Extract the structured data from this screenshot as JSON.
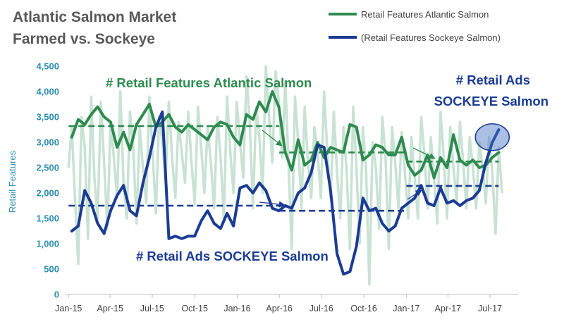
{
  "title": "Atlantic Salmon Market",
  "subtitle": "Farmed vs. Sockeye",
  "chart_data": {
    "type": "line",
    "ylabel": "Retail Features",
    "ylim": [
      0,
      4500
    ],
    "yticks": [
      0,
      500,
      1000,
      1500,
      2000,
      2500,
      3000,
      3500,
      4000,
      4500
    ],
    "ytick_labels": [
      "0",
      "500",
      "1,000",
      "1,500",
      "2,000",
      "2,500",
      "3,000",
      "3,500",
      "4,000",
      "4,500"
    ],
    "xlim": [
      "2014-12-24",
      "2017-08-31"
    ],
    "xtick_dates": [
      "2015-01-01",
      "2015-04-01",
      "2015-07-01",
      "2015-10-01",
      "2016-01-01",
      "2016-04-01",
      "2016-07-01",
      "2016-10-01",
      "2017-01-01",
      "2017-04-01",
      "2017-07-01"
    ],
    "xtick_labels": [
      "Jan-15",
      "Apr-15",
      "Jul-15",
      "Oct-15",
      "Jan-16",
      "Apr-16",
      "Jul-16",
      "Oct-16",
      "Jan-17",
      "Apr-17",
      "Jul-17"
    ],
    "legend_position": "top-right",
    "grid": false,
    "series": [
      {
        "name": "Retail Features Atlantic Salmon",
        "color": "#2e8b4f",
        "x": [
          "2015-01-08",
          "2015-01-22",
          "2015-02-05",
          "2015-02-19",
          "2015-03-05",
          "2015-03-19",
          "2015-04-02",
          "2015-04-16",
          "2015-04-30",
          "2015-05-14",
          "2015-05-28",
          "2015-06-11",
          "2015-06-25",
          "2015-07-09",
          "2015-07-23",
          "2015-08-06",
          "2015-08-20",
          "2015-09-03",
          "2015-09-17",
          "2015-10-01",
          "2015-10-15",
          "2015-10-29",
          "2015-11-12",
          "2015-11-26",
          "2015-12-10",
          "2015-12-24",
          "2016-01-07",
          "2016-01-21",
          "2016-02-04",
          "2016-02-18",
          "2016-03-03",
          "2016-03-17",
          "2016-03-31",
          "2016-04-14",
          "2016-04-28",
          "2016-05-12",
          "2016-05-26",
          "2016-06-09",
          "2016-06-23",
          "2016-07-07",
          "2016-07-21",
          "2016-08-04",
          "2016-08-18",
          "2016-09-01",
          "2016-09-15",
          "2016-09-29",
          "2016-10-13",
          "2016-10-27",
          "2016-11-10",
          "2016-11-24",
          "2016-12-08",
          "2016-12-22",
          "2017-01-05",
          "2017-01-19",
          "2017-02-02",
          "2017-02-16",
          "2017-03-02",
          "2017-03-16",
          "2017-03-30",
          "2017-04-13",
          "2017-04-27",
          "2017-05-11",
          "2017-05-25",
          "2017-06-08",
          "2017-06-22",
          "2017-07-06",
          "2017-07-20"
        ],
        "y": [
          3100,
          3450,
          3350,
          3550,
          3700,
          3500,
          3400,
          2900,
          3200,
          2850,
          3350,
          3550,
          3750,
          3300,
          3400,
          3550,
          3300,
          3200,
          3350,
          3250,
          3150,
          3050,
          3300,
          3400,
          3350,
          3100,
          2950,
          3550,
          3450,
          3800,
          3600,
          4000,
          3700,
          2800,
          2450,
          3050,
          2550,
          2650,
          3000,
          2700,
          2900,
          2850,
          2800,
          3350,
          3300,
          2650,
          2750,
          2950,
          2900,
          2750,
          2750,
          3100,
          2550,
          2350,
          2450,
          2750,
          2300,
          2700,
          2500,
          3150,
          2650,
          2550,
          2650,
          2500,
          2550,
          2700,
          2800
        ]
      },
      {
        "name": "(Retail Features Sockeye Salmon)",
        "color": "#1b3c94",
        "x": [
          "2015-01-08",
          "2015-01-22",
          "2015-02-05",
          "2015-02-19",
          "2015-03-05",
          "2015-03-19",
          "2015-04-02",
          "2015-04-16",
          "2015-04-30",
          "2015-05-14",
          "2015-05-28",
          "2015-06-11",
          "2015-06-25",
          "2015-07-09",
          "2015-07-23",
          "2015-08-06",
          "2015-08-20",
          "2015-09-03",
          "2015-09-17",
          "2015-10-01",
          "2015-10-15",
          "2015-10-29",
          "2015-11-12",
          "2015-11-26",
          "2015-12-10",
          "2015-12-24",
          "2016-01-07",
          "2016-01-21",
          "2016-02-04",
          "2016-02-18",
          "2016-03-03",
          "2016-03-17",
          "2016-03-31",
          "2016-04-14",
          "2016-04-28",
          "2016-05-12",
          "2016-05-26",
          "2016-06-09",
          "2016-06-23",
          "2016-07-07",
          "2016-07-21",
          "2016-08-04",
          "2016-08-18",
          "2016-09-01",
          "2016-09-15",
          "2016-09-29",
          "2016-10-13",
          "2016-10-27",
          "2016-11-10",
          "2016-11-24",
          "2016-12-08",
          "2016-12-22",
          "2017-01-05",
          "2017-01-19",
          "2017-02-02",
          "2017-02-16",
          "2017-03-02",
          "2017-03-16",
          "2017-03-30",
          "2017-04-13",
          "2017-04-27",
          "2017-05-11",
          "2017-05-25",
          "2017-06-08",
          "2017-06-22",
          "2017-07-06",
          "2017-07-20"
        ],
        "y": [
          1250,
          1350,
          2050,
          1800,
          1400,
          1200,
          1650,
          1950,
          2150,
          1650,
          1550,
          2200,
          2700,
          3300,
          3600,
          1100,
          1150,
          1100,
          1150,
          1150,
          1450,
          1650,
          1400,
          1300,
          1600,
          1350,
          2100,
          2150,
          2000,
          2200,
          2050,
          1700,
          1650,
          1750,
          1700,
          2000,
          2100,
          2400,
          2950,
          2900,
          2050,
          800,
          400,
          450,
          950,
          1900,
          1650,
          1700,
          1400,
          1250,
          1350,
          1700,
          1800,
          1900,
          2150,
          1800,
          1750,
          2100,
          1800,
          1850,
          1750,
          1850,
          1900,
          2050,
          2600,
          3000,
          3250
        ]
      }
    ],
    "background_series": {
      "color": "#c8e2d4",
      "x": [
        "2015-01-01",
        "2015-01-08",
        "2015-01-15",
        "2015-01-22",
        "2015-01-29",
        "2015-02-05",
        "2015-02-12",
        "2015-02-19",
        "2015-02-26",
        "2015-03-05",
        "2015-03-12",
        "2015-03-19",
        "2015-03-26",
        "2015-04-02",
        "2015-04-09",
        "2015-04-16",
        "2015-04-23",
        "2015-04-30",
        "2015-05-07",
        "2015-05-14",
        "2015-05-21",
        "2015-05-28",
        "2015-06-04",
        "2015-06-11",
        "2015-06-18",
        "2015-06-25",
        "2015-07-02",
        "2015-07-09",
        "2015-07-16",
        "2015-07-23",
        "2015-07-30",
        "2015-08-06",
        "2015-08-13",
        "2015-08-20",
        "2015-08-27",
        "2015-09-03",
        "2015-09-10",
        "2015-09-17",
        "2015-09-24",
        "2015-10-01",
        "2015-10-08",
        "2015-10-15",
        "2015-10-22",
        "2015-10-29",
        "2015-11-05",
        "2015-11-12",
        "2015-11-19",
        "2015-11-26",
        "2015-12-03",
        "2015-12-10",
        "2015-12-17",
        "2015-12-24",
        "2015-12-31",
        "2016-01-07",
        "2016-01-14",
        "2016-01-21",
        "2016-01-28",
        "2016-02-04",
        "2016-02-11",
        "2016-02-18",
        "2016-02-25",
        "2016-03-03",
        "2016-03-10",
        "2016-03-17",
        "2016-03-24",
        "2016-03-31",
        "2016-04-07",
        "2016-04-14",
        "2016-04-21",
        "2016-04-28",
        "2016-05-05",
        "2016-05-12",
        "2016-05-19",
        "2016-05-26",
        "2016-06-02",
        "2016-06-09",
        "2016-06-16",
        "2016-06-23",
        "2016-06-30",
        "2016-07-07",
        "2016-07-14",
        "2016-07-21",
        "2016-07-28",
        "2016-08-04",
        "2016-08-11",
        "2016-08-18",
        "2016-08-25",
        "2016-09-01",
        "2016-09-08",
        "2016-09-15",
        "2016-09-22",
        "2016-09-29",
        "2016-10-06",
        "2016-10-13",
        "2016-10-20",
        "2016-10-27",
        "2016-11-03",
        "2016-11-10",
        "2016-11-17",
        "2016-11-24",
        "2016-12-01",
        "2016-12-08",
        "2016-12-15",
        "2016-12-22",
        "2016-12-29",
        "2017-01-05",
        "2017-01-12",
        "2017-01-19",
        "2017-01-26",
        "2017-02-02",
        "2017-02-09",
        "2017-02-16",
        "2017-02-23",
        "2017-03-02",
        "2017-03-09",
        "2017-03-16",
        "2017-03-23",
        "2017-03-30",
        "2017-04-06",
        "2017-04-13",
        "2017-04-20",
        "2017-04-27",
        "2017-05-04",
        "2017-05-11",
        "2017-05-18",
        "2017-05-25",
        "2017-06-01",
        "2017-06-08",
        "2017-06-15",
        "2017-06-22",
        "2017-06-29",
        "2017-07-06",
        "2017-07-13",
        "2017-07-20",
        "2017-07-27"
      ],
      "y": [
        2500,
        3300,
        1900,
        600,
        3500,
        2900,
        1100,
        3900,
        2300,
        1500,
        3800,
        2600,
        1300,
        3400,
        2700,
        1900,
        4000,
        2200,
        1500,
        3600,
        2900,
        1400,
        3300,
        2500,
        1800,
        3900,
        2800,
        1600,
        3500,
        3000,
        2300,
        3800,
        2700,
        1900,
        3400,
        2800,
        2200,
        3600,
        2600,
        1800,
        3700,
        2900,
        2000,
        3300,
        2600,
        1700,
        3500,
        2700,
        1500,
        3900,
        2800,
        2000,
        3800,
        3000,
        2300,
        4300,
        3400,
        1700,
        3700,
        3100,
        2000,
        4500,
        3500,
        2600,
        4400,
        3800,
        2700,
        4200,
        2600,
        900,
        3900,
        3000,
        1700,
        3700,
        2600,
        1900,
        3300,
        2800,
        1900,
        4000,
        2800,
        1900,
        3600,
        2400,
        1500,
        3300,
        2400,
        900,
        3700,
        2500,
        1000,
        3300,
        2400,
        200,
        3000,
        2500,
        1300,
        3500,
        2700,
        900,
        3300,
        2600,
        1700,
        3200,
        2400,
        1500,
        3100,
        2300,
        1500,
        3500,
        2800,
        1700,
        3100,
        2300,
        1400,
        3600,
        2700,
        1500,
        3300,
        2500,
        1800,
        3400,
        2600,
        1700,
        3100,
        2500,
        1700,
        3000,
        2500,
        1800,
        3100,
        2400,
        1200,
        2900,
        2000
      ]
    },
    "reference_lines": [
      {
        "series": "Retail Features Atlantic Salmon",
        "x": [
          "2015-01-01",
          "2016-04-01"
        ],
        "y": 3320
      },
      {
        "series": "Retail Features Atlantic Salmon",
        "x": [
          "2016-04-01",
          "2017-01-01"
        ],
        "y": 2800
      },
      {
        "series": "Retail Features Atlantic Salmon",
        "x": [
          "2017-01-01",
          "2017-07-20"
        ],
        "y": 2620
      },
      {
        "series": "(Retail Features Sockeye Salmon)",
        "x": [
          "2015-01-01",
          "2016-04-01"
        ],
        "y": 1750
      },
      {
        "series": "(Retail Features Sockeye Salmon)",
        "x": [
          "2016-04-01",
          "2017-01-01"
        ],
        "y": 1650
      },
      {
        "series": "(Retail Features Sockeye Salmon)",
        "x": [
          "2017-01-01",
          "2017-07-20"
        ],
        "y": 2140
      }
    ],
    "annotations": [
      {
        "text": "# Retail Features Atlantic Salmon",
        "color": "#2e8b4f"
      },
      {
        "text": "# Retail Ads SOCKEYE Salmon",
        "color": "#1b3c94"
      },
      {
        "text": "# Retail Ads",
        "color": "#1b3c94"
      },
      {
        "text": "SOCKEYE Salmon",
        "color": "#1b3c94"
      }
    ],
    "highlight": {
      "x": "2017-07-06",
      "y": 3100,
      "color": "#4472c4"
    }
  }
}
